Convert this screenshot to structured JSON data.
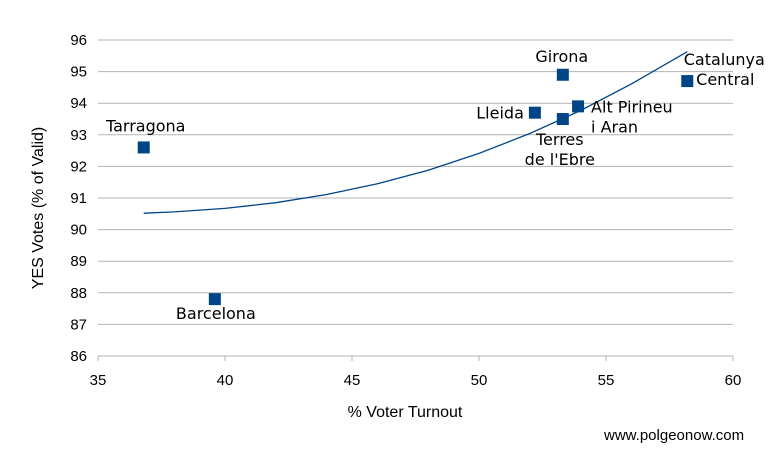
{
  "chart_data": {
    "type": "scatter",
    "title": "",
    "xlabel": "% Voter Turnout",
    "ylabel": "YES Votes (% of Valid)",
    "xlim": [
      35,
      60
    ],
    "ylim": [
      86,
      96
    ],
    "xticks": [
      35,
      40,
      45,
      50,
      55,
      60
    ],
    "yticks": [
      86,
      87,
      88,
      89,
      90,
      91,
      92,
      93,
      94,
      95,
      96
    ],
    "grid": "horizontal",
    "marker_color": "#004586",
    "trend_color": "#004586",
    "points": [
      {
        "label_lines": [
          "Tarragona"
        ],
        "x": 36.8,
        "y": 92.6
      },
      {
        "label_lines": [
          "Barcelona"
        ],
        "x": 39.6,
        "y": 87.8
      },
      {
        "label_lines": [
          "Lleida"
        ],
        "x": 52.2,
        "y": 93.7
      },
      {
        "label_lines": [
          "Girona"
        ],
        "x": 53.3,
        "y": 94.9
      },
      {
        "label_lines": [
          "Terres",
          "de l'Ebre"
        ],
        "x": 53.3,
        "y": 93.5
      },
      {
        "label_lines": [
          "Alt Pirineu",
          "i Aran"
        ],
        "x": 53.9,
        "y": 93.9
      },
      {
        "label_lines": [
          "Catalunya",
          "Central"
        ],
        "x": 58.2,
        "y": 94.7
      }
    ],
    "trendline": {
      "type": "polynomial",
      "x": [
        36.8,
        38,
        40,
        42,
        44,
        46,
        48,
        50,
        52,
        54,
        56,
        58.2
      ],
      "y": [
        90.52,
        90.56,
        90.67,
        90.85,
        91.11,
        91.45,
        91.88,
        92.41,
        93.04,
        93.77,
        94.61,
        95.63
      ]
    }
  },
  "credit": "www.polgeonow.com"
}
